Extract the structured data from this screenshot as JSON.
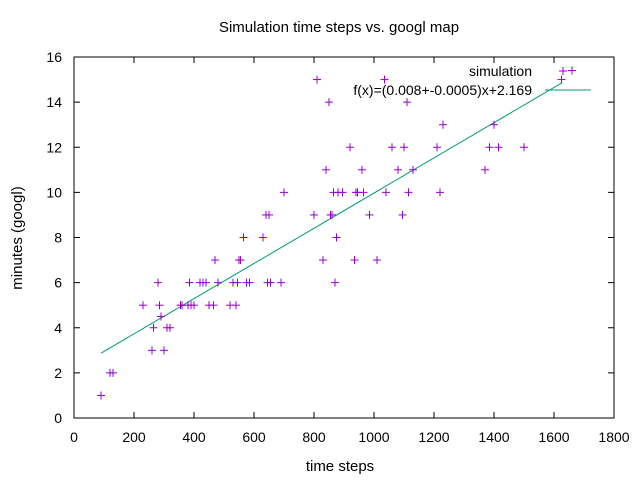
{
  "chart_data": {
    "type": "scatter",
    "title": "Simulation time steps vs. googl map",
    "xlabel": "time steps",
    "ylabel": "minutes (googl)",
    "xlim": [
      0,
      1800
    ],
    "ylim": [
      0,
      16
    ],
    "xticks": [
      0,
      200,
      400,
      600,
      800,
      1000,
      1200,
      1400,
      1600,
      1800
    ],
    "yticks": [
      0,
      2,
      4,
      6,
      8,
      10,
      12,
      14,
      16
    ],
    "legend_position": "top-right",
    "grid": false,
    "colors": {
      "points": "#9400d3",
      "fit": "#009e73",
      "axes": "#000000"
    },
    "series": [
      {
        "name": "simulation",
        "marker": "plus",
        "points": [
          [
            90,
            1
          ],
          [
            120,
            2
          ],
          [
            130,
            2
          ],
          [
            230,
            5
          ],
          [
            260,
            3
          ],
          [
            265,
            4
          ],
          [
            280,
            6
          ],
          [
            285,
            5
          ],
          [
            290,
            4.5
          ],
          [
            300,
            3
          ],
          [
            310,
            4
          ],
          [
            320,
            4
          ],
          [
            355,
            5
          ],
          [
            360,
            5
          ],
          [
            380,
            5
          ],
          [
            385,
            6
          ],
          [
            390,
            5
          ],
          [
            400,
            5
          ],
          [
            420,
            6
          ],
          [
            430,
            6
          ],
          [
            440,
            6
          ],
          [
            450,
            5
          ],
          [
            465,
            5
          ],
          [
            470,
            7
          ],
          [
            480,
            6
          ],
          [
            520,
            5
          ],
          [
            530,
            6
          ],
          [
            540,
            5
          ],
          [
            545,
            6
          ],
          [
            550,
            7
          ],
          [
            555,
            7
          ],
          [
            565,
            8
          ],
          [
            575,
            6
          ],
          [
            585,
            6
          ],
          [
            630,
            8
          ],
          [
            640,
            9
          ],
          [
            645,
            6
          ],
          [
            650,
            9
          ],
          [
            655,
            6
          ],
          [
            690,
            6
          ],
          [
            700,
            10
          ],
          [
            800,
            9
          ],
          [
            810,
            15
          ],
          [
            830,
            7
          ],
          [
            840,
            11
          ],
          [
            850,
            14
          ],
          [
            855,
            9
          ],
          [
            860,
            9
          ],
          [
            865,
            10
          ],
          [
            870,
            6
          ],
          [
            875,
            8
          ],
          [
            880,
            10
          ],
          [
            895,
            10
          ],
          [
            920,
            12
          ],
          [
            935,
            7
          ],
          [
            940,
            10
          ],
          [
            945,
            10
          ],
          [
            960,
            11
          ],
          [
            965,
            10
          ],
          [
            985,
            9
          ],
          [
            1010,
            7
          ],
          [
            1040,
            10
          ],
          [
            1035,
            15
          ],
          [
            1060,
            12
          ],
          [
            1080,
            11
          ],
          [
            1095,
            9
          ],
          [
            1100,
            12
          ],
          [
            1110,
            14
          ],
          [
            1115,
            10
          ],
          [
            1130,
            11
          ],
          [
            1210,
            12
          ],
          [
            1220,
            10
          ],
          [
            1230,
            13
          ],
          [
            1370,
            11
          ],
          [
            1385,
            12
          ],
          [
            1400,
            13
          ],
          [
            1415,
            12
          ],
          [
            1500,
            12
          ],
          [
            1625,
            15
          ],
          [
            1660,
            15.4
          ]
        ]
      },
      {
        "name": "f(x)=(0.008+-0.0005)x+2.169",
        "type": "line",
        "slope": 0.0078,
        "intercept": 2.169,
        "x_range": [
          90,
          1625
        ]
      }
    ]
  }
}
